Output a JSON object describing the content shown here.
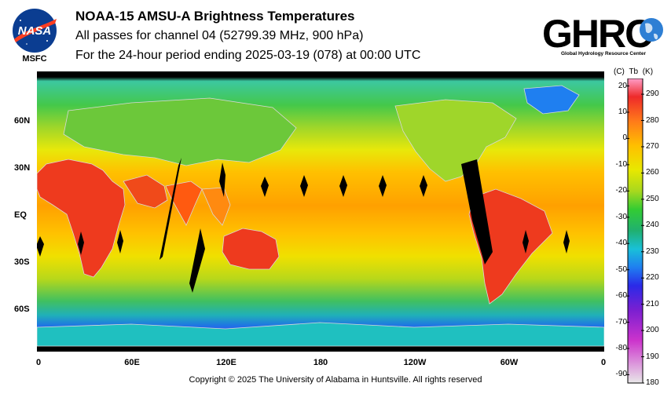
{
  "header": {
    "title": "NOAA-15 AMSU-A Brightness Temperatures",
    "subtitle_passes": "All passes for channel 04 (52799.39 MHz, 900 hPa)",
    "subtitle_period": "For the 24-hour period ending 2025-03-19 (078) at 00:00 UTC"
  },
  "logos": {
    "nasa_text": "NASA",
    "msfc_text": "MSFC",
    "ghrc_text": "GHRC",
    "ghrc_subtitle": "Global Hydrology Resource Center",
    "nasa_blue": "#0b3d91",
    "nasa_red": "#fc3d21"
  },
  "map": {
    "lat_labels": [
      "60N",
      "30N",
      "EQ",
      "30S",
      "60S"
    ],
    "lat_values": [
      60,
      30,
      0,
      -30,
      -60
    ],
    "lon_labels": [
      "0",
      "60E",
      "120E",
      "180",
      "120W",
      "60W",
      "0"
    ],
    "lon_values": [
      0,
      60,
      120,
      180,
      240,
      300,
      360
    ],
    "lat_range": [
      -90,
      90
    ],
    "lon_range": [
      0,
      360
    ]
  },
  "colorbar": {
    "units_c": "(C)",
    "units_tb": "Tb",
    "units_k": "(K)",
    "celsius_ticks": [
      "20",
      "10",
      "0",
      "-10",
      "-20",
      "-30",
      "-40",
      "-50",
      "-60",
      "-70",
      "-80",
      "-90"
    ],
    "kelvin_ticks": [
      "290",
      "280",
      "270",
      "260",
      "250",
      "240",
      "230",
      "220",
      "210",
      "200",
      "190",
      "180"
    ],
    "kelvin_values": [
      290,
      280,
      270,
      260,
      250,
      240,
      230,
      220,
      210,
      200,
      190,
      180
    ],
    "celsius_values": [
      20,
      10,
      0,
      -10,
      -20,
      -30,
      -40,
      -50,
      -60,
      -70,
      -80,
      -90
    ],
    "range_k": [
      180,
      296
    ],
    "colors": [
      "#e8e8e8",
      "#cc33cc",
      "#7a1fd1",
      "#2a2ae8",
      "#1f7ff0",
      "#19c0d8",
      "#20b070",
      "#33cc33",
      "#a8d81e",
      "#e8e800",
      "#ffbf00",
      "#ff7a1a",
      "#ee2a2a",
      "#ff9ec8"
    ]
  },
  "footer": {
    "copyright": "Copyright © 2025 The University of Alabama in Huntsville.  All rights reserved"
  }
}
